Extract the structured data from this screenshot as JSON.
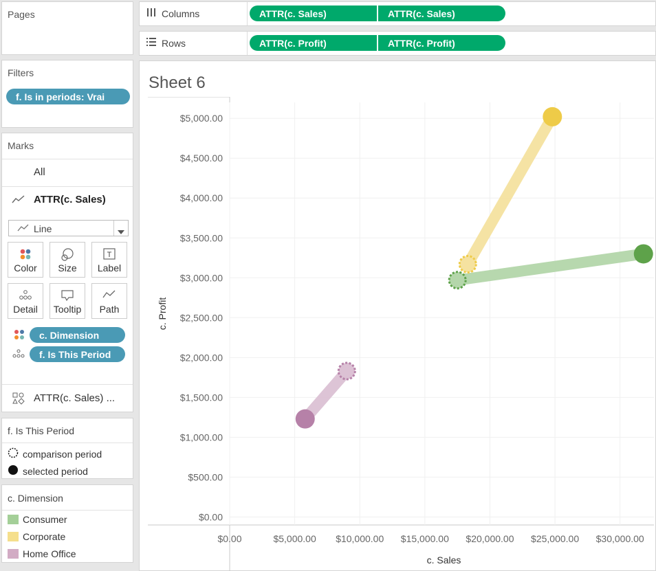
{
  "pages": {
    "title": "Pages"
  },
  "filters": {
    "title": "Filters",
    "pills": [
      "f. Is in periods: Vrai"
    ]
  },
  "marks": {
    "title": "Marks",
    "all_label": "All",
    "measure_label": "ATTR(c. Sales)",
    "mark_type": "Line",
    "buttons": {
      "color": "Color",
      "size": "Size",
      "label": "Label",
      "detail": "Detail",
      "tooltip": "Tooltip",
      "path": "Path"
    },
    "fields": [
      {
        "name": "c. Dimension",
        "icon": "color-dots-icon"
      },
      {
        "name": "f. Is This Period",
        "icon": "detail-dots-icon"
      }
    ],
    "secondary_measure_label": "ATTR(c. Sales) ..."
  },
  "shelves": {
    "columns_label": "Columns",
    "rows_label": "Rows",
    "columns_pills": [
      "ATTR(c. Sales)",
      "ATTR(c. Sales)"
    ],
    "rows_pills": [
      "ATTR(c. Profit)",
      "ATTR(c. Profit)"
    ]
  },
  "legend_period": {
    "title": "f. Is This Period",
    "items": [
      {
        "label": "comparison period",
        "style": "dotted"
      },
      {
        "label": "selected period",
        "style": "filled"
      }
    ]
  },
  "legend_dimension": {
    "title": "c. Dimension",
    "items": [
      {
        "label": "Consumer",
        "color": "#a4cf98"
      },
      {
        "label": "Corporate",
        "color": "#f5df8c"
      },
      {
        "label": "Home Office",
        "color": "#d2abc4"
      }
    ]
  },
  "sheet": {
    "title": "Sheet 6"
  },
  "chart_data": {
    "type": "line",
    "title": "Sheet 6",
    "xlabel": "c. Sales",
    "ylabel": "c. Profit",
    "xlim": [
      0,
      32500
    ],
    "ylim": [
      -100,
      5200
    ],
    "x_ticks": [
      0,
      5000,
      10000,
      15000,
      20000,
      25000,
      30000
    ],
    "x_tick_labels": [
      "$0.00",
      "$5,000.00",
      "$10,000.00",
      "$15,000.00",
      "$20,000.00",
      "$25,000.00",
      "$30,000.00"
    ],
    "y_ticks": [
      0,
      500,
      1000,
      1500,
      2000,
      2500,
      3000,
      3500,
      4000,
      4500,
      5000
    ],
    "y_tick_labels": [
      "$0.00",
      "$500.00",
      "$1,000.00",
      "$1,500.00",
      "$2,000.00",
      "$2,500.00",
      "$3,000.00",
      "$3,500.00",
      "$4,000.00",
      "$4,500.00",
      "$5,000.00"
    ],
    "grid": true,
    "series": [
      {
        "name": "Consumer",
        "line_color": "#b4d6aa",
        "point_color": "#5ea24a",
        "comparison": {
          "x": 17500,
          "y": 2970
        },
        "selected": {
          "x": 31800,
          "y": 3300
        }
      },
      {
        "name": "Corporate",
        "line_color": "#f5e2a0",
        "point_color": "#eecb48",
        "comparison": {
          "x": 18300,
          "y": 3170
        },
        "selected": {
          "x": 24800,
          "y": 5020
        }
      },
      {
        "name": "Home Office",
        "line_color": "#dcc1d4",
        "point_color": "#b681a8",
        "comparison": {
          "x": 9000,
          "y": 1830
        },
        "selected": {
          "x": 5800,
          "y": 1230
        }
      }
    ]
  }
}
